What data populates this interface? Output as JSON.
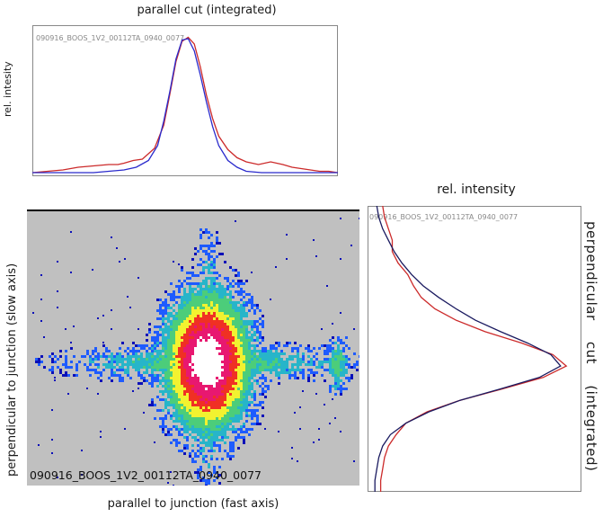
{
  "run_id": "090916_BOOS_1V2_00112TA_0940_0077",
  "chart_data": [
    {
      "type": "line",
      "title": "parallel cut (integrated)",
      "xlabel": "",
      "ylabel": "rel. intesity",
      "annotation": "090916_BOOS_1V2_00112TA_0940_0077",
      "xlim": [
        0,
        100
      ],
      "ylim": [
        0,
        1.05
      ],
      "grid": false,
      "series": [
        {
          "color": "#cc2a2a",
          "x": [
            0,
            5,
            10,
            15,
            20,
            25,
            28,
            30,
            33,
            36,
            40,
            43,
            45,
            47,
            49,
            51,
            53,
            55,
            57,
            59,
            61,
            64,
            67,
            70,
            74,
            78,
            82,
            85,
            88,
            91,
            94,
            97,
            100
          ],
          "y": [
            0.0,
            0.01,
            0.02,
            0.04,
            0.05,
            0.06,
            0.06,
            0.07,
            0.09,
            0.1,
            0.18,
            0.35,
            0.58,
            0.82,
            0.97,
            1.0,
            0.95,
            0.78,
            0.57,
            0.4,
            0.27,
            0.17,
            0.11,
            0.08,
            0.06,
            0.08,
            0.06,
            0.04,
            0.03,
            0.02,
            0.01,
            0.01,
            0.0
          ]
        },
        {
          "color": "#2a2acc",
          "x": [
            0,
            10,
            20,
            25,
            30,
            34,
            38,
            41,
            43,
            45,
            47,
            49,
            51,
            53,
            55,
            57,
            59,
            61,
            64,
            67,
            70,
            75,
            80,
            90,
            100
          ],
          "y": [
            0.0,
            0.0,
            0.0,
            0.01,
            0.02,
            0.04,
            0.09,
            0.2,
            0.38,
            0.6,
            0.84,
            0.98,
            0.99,
            0.9,
            0.72,
            0.52,
            0.34,
            0.2,
            0.09,
            0.04,
            0.01,
            0.0,
            0.0,
            0.0,
            0.0
          ]
        }
      ]
    },
    {
      "type": "heatmap",
      "title": "",
      "xlabel": "parallel to junction (fast axis)",
      "ylabel": "perpendicular to junction (slow axis)",
      "annotation": "090916_BOOS_1V2_00112TA_0940_0077",
      "background": "#c0c0c0",
      "colormap": [
        "#0b10b8",
        "#1e5bff",
        "#27b5c9",
        "#4ccd7a",
        "#f2f230",
        "#f03024",
        "#e81870",
        "#ffffff"
      ],
      "peak_center": [
        0.54,
        0.55
      ],
      "side_lobe_center": [
        0.93,
        0.56
      ]
    },
    {
      "type": "line",
      "title": "rel. intensity",
      "xlabel": "",
      "ylabel": "perpendicular cut (integrated)",
      "annotation": "090916_BOOS_1V2_00112TA_0940_0077",
      "orientation": "vertical",
      "ylim": [
        0,
        100
      ],
      "xlim": [
        0,
        1.05
      ],
      "grid": false,
      "series": [
        {
          "color": "#cc2a2a",
          "y": [
            0,
            4,
            8,
            12,
            16,
            20,
            24,
            28,
            32,
            36,
            40,
            44,
            48,
            52,
            56,
            60,
            64,
            68,
            72,
            76,
            80,
            84,
            88,
            92,
            96,
            100
          ],
          "x": [
            0.05,
            0.06,
            0.08,
            0.1,
            0.1,
            0.13,
            0.18,
            0.21,
            0.25,
            0.32,
            0.43,
            0.58,
            0.77,
            0.93,
            1.0,
            0.88,
            0.67,
            0.45,
            0.28,
            0.17,
            0.12,
            0.08,
            0.06,
            0.05,
            0.04,
            0.04
          ]
        },
        {
          "color": "#1a1a60",
          "y": [
            0,
            4,
            8,
            12,
            16,
            20,
            24,
            28,
            32,
            36,
            40,
            44,
            48,
            52,
            56,
            60,
            64,
            68,
            72,
            76,
            80,
            84,
            88,
            92,
            96,
            100
          ],
          "x": [
            0.02,
            0.03,
            0.05,
            0.08,
            0.11,
            0.15,
            0.2,
            0.26,
            0.34,
            0.43,
            0.53,
            0.66,
            0.8,
            0.92,
            0.97,
            0.86,
            0.66,
            0.45,
            0.29,
            0.17,
            0.09,
            0.05,
            0.03,
            0.02,
            0.01,
            0.01
          ]
        }
      ]
    }
  ]
}
